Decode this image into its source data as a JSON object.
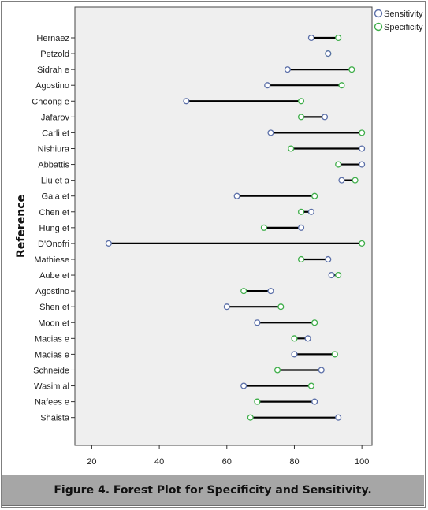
{
  "chart_data": {
    "type": "scatter",
    "subtype": "dumbbell",
    "ylabel": "Reference",
    "xlim": [
      15,
      103
    ],
    "xticks": [
      20,
      40,
      60,
      80,
      100
    ],
    "grid": false,
    "legend_position": "top-right",
    "series": [
      {
        "name": "Sensitivity",
        "color": "#5b6fa8"
      },
      {
        "name": "Specificity",
        "color": "#3fae4a"
      }
    ],
    "rows": [
      {
        "label": "Hernaez",
        "sensitivity": 85,
        "specificity": 93
      },
      {
        "label": "Petzold",
        "sensitivity": 90,
        "specificity": 90
      },
      {
        "label": "Sidrah e",
        "sensitivity": 78,
        "specificity": 97
      },
      {
        "label": "Agostino",
        "sensitivity": 72,
        "specificity": 94
      },
      {
        "label": "Choong e",
        "sensitivity": 48,
        "specificity": 82
      },
      {
        "label": "Jafarov",
        "sensitivity": 89,
        "specificity": 82
      },
      {
        "label": "Carli et",
        "sensitivity": 73,
        "specificity": 100
      },
      {
        "label": "Nishiura",
        "sensitivity": 100,
        "specificity": 79
      },
      {
        "label": "Abbattis",
        "sensitivity": 100,
        "specificity": 93
      },
      {
        "label": "Liu et a",
        "sensitivity": 94,
        "specificity": 98
      },
      {
        "label": "Gaia et",
        "sensitivity": 63,
        "specificity": 86
      },
      {
        "label": "Chen et",
        "sensitivity": 85,
        "specificity": 82
      },
      {
        "label": "Hung et",
        "sensitivity": 82,
        "specificity": 71
      },
      {
        "label": "D'Onofri",
        "sensitivity": 25,
        "specificity": 100
      },
      {
        "label": "Mathiese",
        "sensitivity": 90,
        "specificity": 82
      },
      {
        "label": "Aube et",
        "sensitivity": 91,
        "specificity": 93
      },
      {
        "label": "Agostino",
        "sensitivity": 73,
        "specificity": 65
      },
      {
        "label": "Shen et",
        "sensitivity": 60,
        "specificity": 76
      },
      {
        "label": "Moon et",
        "sensitivity": 69,
        "specificity": 86
      },
      {
        "label": "Macias e",
        "sensitivity": 84,
        "specificity": 80
      },
      {
        "label": "Macias e",
        "sensitivity": 80,
        "specificity": 92
      },
      {
        "label": "Schneide",
        "sensitivity": 88,
        "specificity": 75
      },
      {
        "label": "Wasim al",
        "sensitivity": 65,
        "specificity": 85
      },
      {
        "label": "Nafees e",
        "sensitivity": 86,
        "specificity": 69
      },
      {
        "label": "Shaista",
        "sensitivity": 93,
        "specificity": 67
      }
    ]
  },
  "caption": "Figure 4. Forest Plot for Specificity and Sensitivity."
}
